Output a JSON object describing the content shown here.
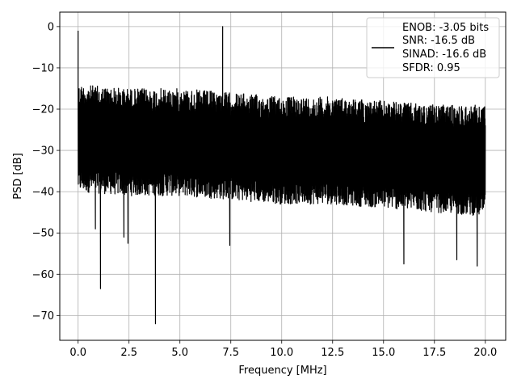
{
  "chart_data": {
    "type": "line",
    "title": "",
    "xlabel": "Frequency [MHz]",
    "ylabel": "PSD [dB]",
    "xlim": [
      -0.9,
      21
    ],
    "ylim": [
      -76,
      3.5
    ],
    "x_ticks": [
      0.0,
      2.5,
      5.0,
      7.5,
      10.0,
      12.5,
      15.0,
      17.5,
      20.0
    ],
    "x_tick_labels": [
      "0.0",
      "2.5",
      "5.0",
      "7.5",
      "10.0",
      "12.5",
      "15.0",
      "17.5",
      "20.0"
    ],
    "y_ticks": [
      0,
      -10,
      -20,
      -30,
      -40,
      -50,
      -60,
      -70
    ],
    "y_tick_labels": [
      "0",
      "−10",
      "−20",
      "−30",
      "−40",
      "−50",
      "−60",
      "−70"
    ],
    "grid": true,
    "legend": {
      "placement": "top-right",
      "lines": [
        "ENOB: -3.05 bits",
        "SNR: -16.5 dB",
        "SINAD: -16.6 dB",
        "SFDR: 0.95"
      ]
    },
    "series": [
      {
        "color": "#000000",
        "noise_floor_envelope": {
          "x": [
            0.0,
            2.5,
            5.0,
            7.5,
            10.0,
            12.5,
            15.0,
            17.5,
            20.0
          ],
          "upper": [
            -14,
            -15,
            -15,
            -16,
            -17,
            -17,
            -18,
            -19,
            -19
          ],
          "lower": [
            -40,
            -41,
            -41,
            -42,
            -43,
            -43,
            -44,
            -45,
            -46
          ]
        },
        "spurs": [
          {
            "x": 0.0,
            "y": -1
          },
          {
            "x": 7.1,
            "y": 0
          }
        ],
        "deep_nulls": [
          {
            "x": 0.85,
            "y": -49
          },
          {
            "x": 1.1,
            "y": -63.5
          },
          {
            "x": 2.25,
            "y": -51
          },
          {
            "x": 2.45,
            "y": -52.5
          },
          {
            "x": 3.8,
            "y": -72
          },
          {
            "x": 7.45,
            "y": -53
          },
          {
            "x": 16.0,
            "y": -57.5
          },
          {
            "x": 18.6,
            "y": -56.5
          },
          {
            "x": 19.6,
            "y": -58
          }
        ]
      }
    ]
  }
}
